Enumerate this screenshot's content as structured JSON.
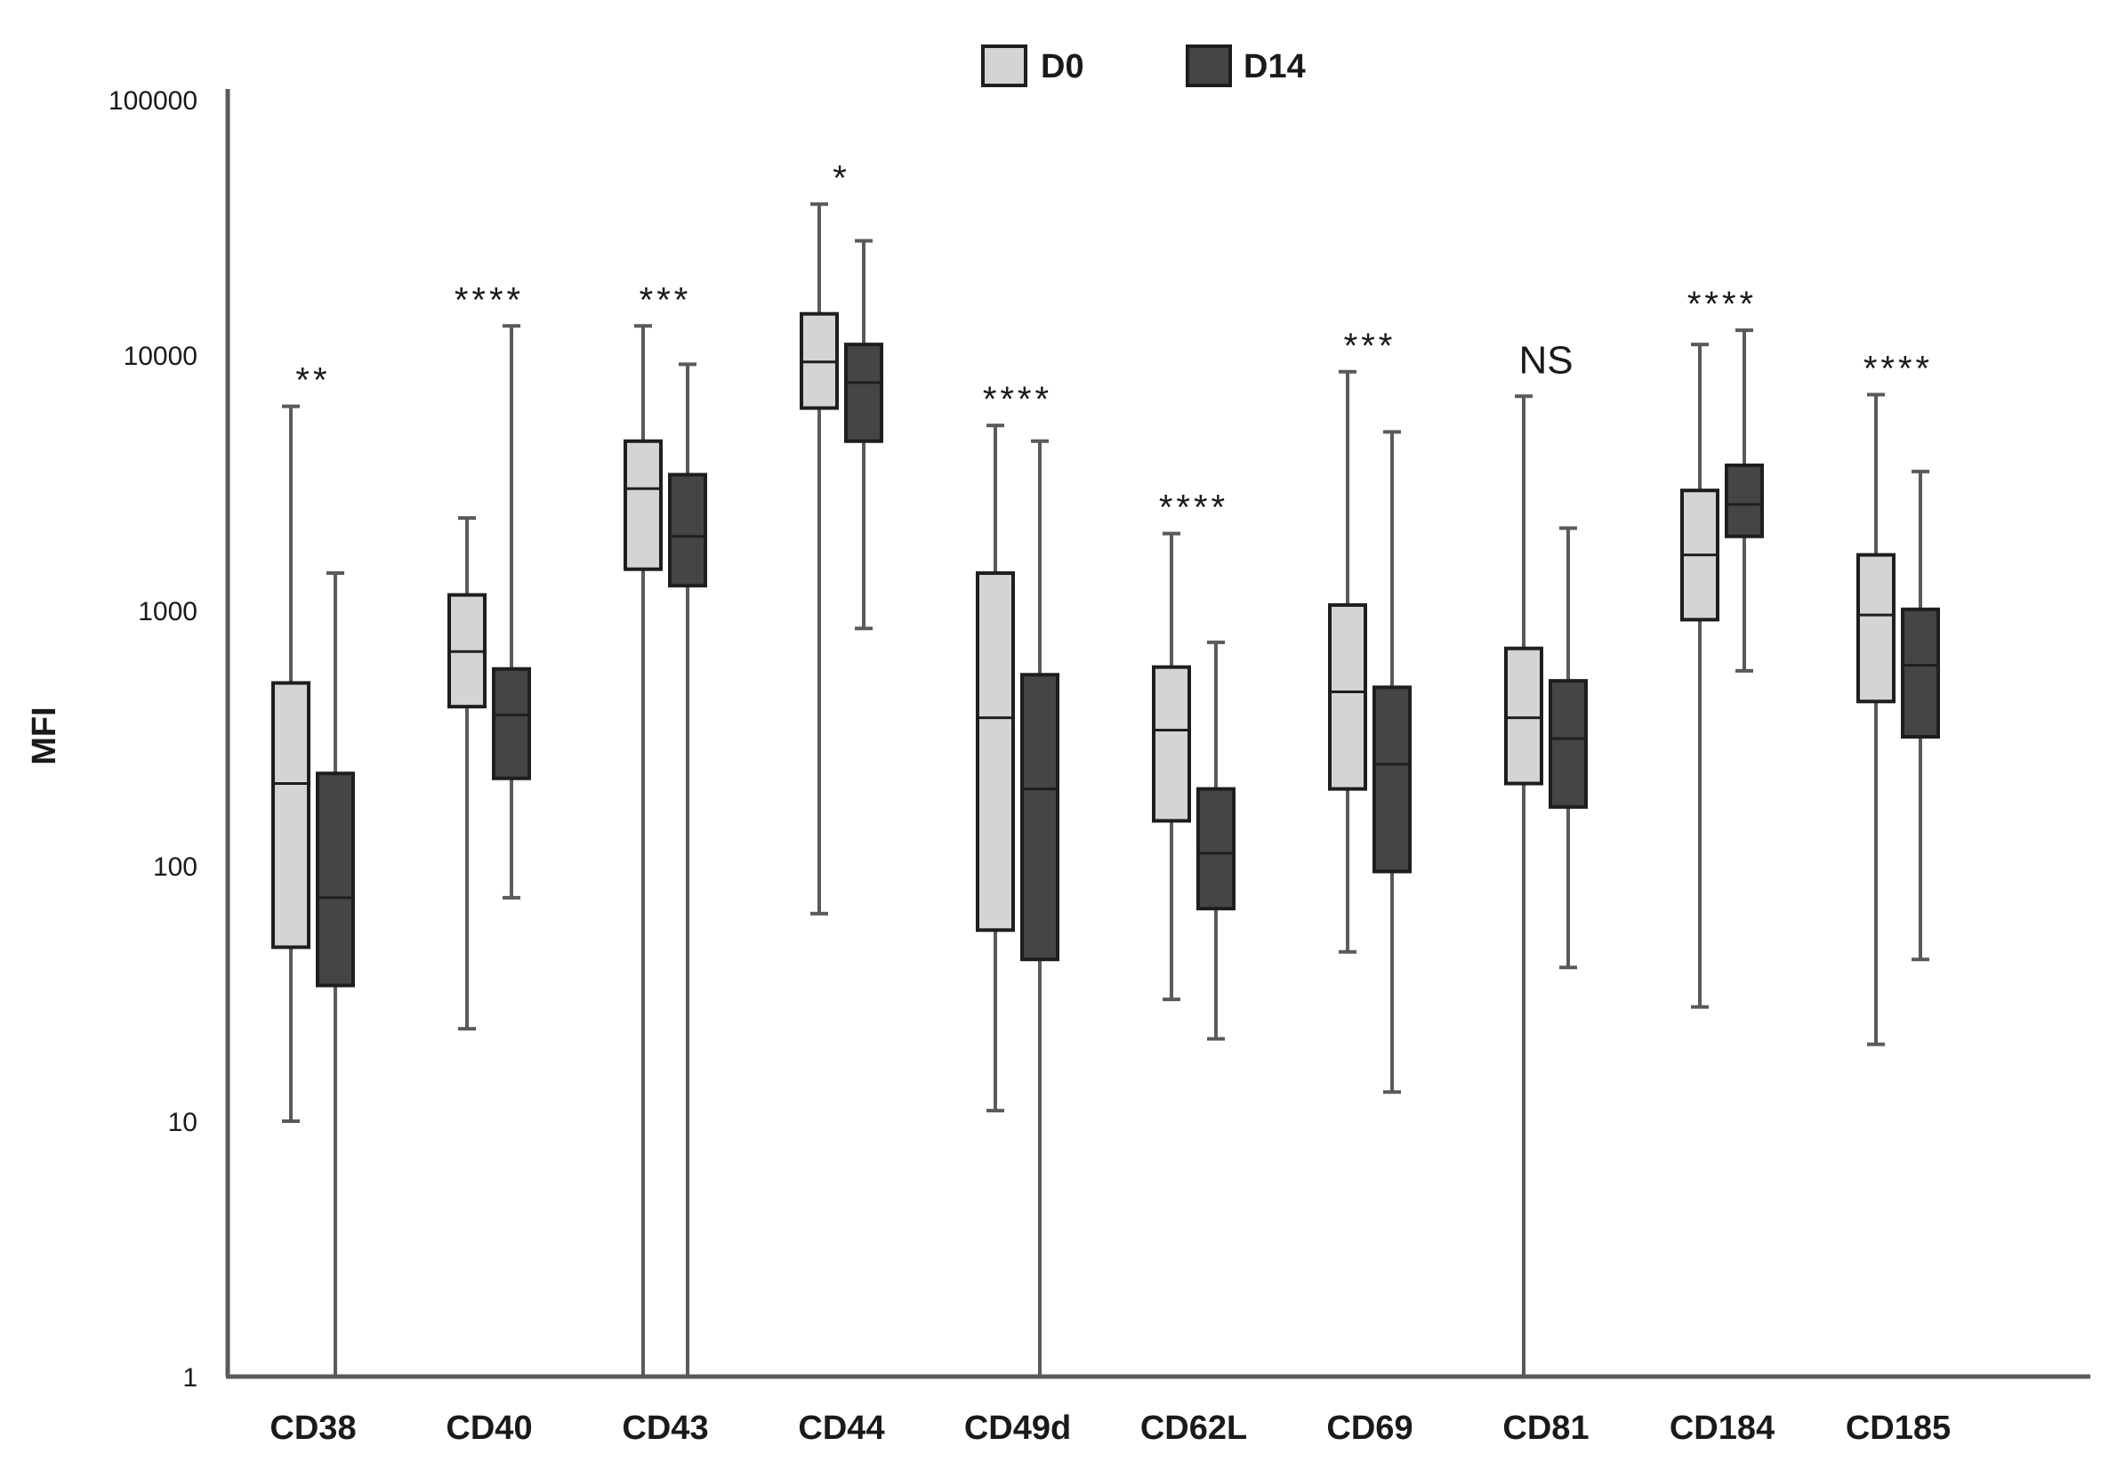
{
  "chart_data": {
    "type": "box",
    "title": "",
    "xlabel": "",
    "ylabel": "MFI",
    "yscale": "log",
    "ylim": [
      1,
      100000
    ],
    "yticks": [
      "1",
      "10",
      "100",
      "1000",
      "10000",
      "100000"
    ],
    "grid": false,
    "legend_position": "top-center",
    "categories": [
      "CD38",
      "CD40",
      "CD43",
      "CD44",
      "CD49d",
      "CD62L",
      "CD69",
      "CD81",
      "CD184",
      "CD185"
    ],
    "significance": [
      "**",
      "****",
      "***",
      "*",
      "****",
      "****",
      "***",
      "NS",
      "****",
      "****"
    ],
    "series": [
      {
        "name": "D0",
        "color": "#d4d4d4",
        "boxes": [
          {
            "min": 10,
            "q1": 48,
            "median": 210,
            "q3": 520,
            "max": 6300
          },
          {
            "min": 23,
            "q1": 420,
            "median": 690,
            "q3": 1150,
            "max": 2300
          },
          {
            "min": 1,
            "q1": 1450,
            "median": 3000,
            "q3": 4600,
            "max": 13000
          },
          {
            "min": 65,
            "q1": 6200,
            "median": 9400,
            "q3": 14500,
            "max": 39000
          },
          {
            "min": 11,
            "q1": 56,
            "median": 380,
            "q3": 1400,
            "max": 5300
          },
          {
            "min": 30,
            "q1": 150,
            "median": 340,
            "q3": 600,
            "max": 2000
          },
          {
            "min": 46,
            "q1": 200,
            "median": 480,
            "q3": 1050,
            "max": 8600
          },
          {
            "min": 1,
            "q1": 210,
            "median": 380,
            "q3": 710,
            "max": 6900
          },
          {
            "min": 28,
            "q1": 920,
            "median": 1650,
            "q3": 2950,
            "max": 11000
          },
          {
            "min": 20,
            "q1": 440,
            "median": 960,
            "q3": 1650,
            "max": 7000
          }
        ]
      },
      {
        "name": "D14",
        "color": "#454545",
        "boxes": [
          {
            "min": 1,
            "q1": 34,
            "median": 75,
            "q3": 230,
            "max": 1400
          },
          {
            "min": 75,
            "q1": 220,
            "median": 390,
            "q3": 590,
            "max": 13000
          },
          {
            "min": 1,
            "q1": 1250,
            "median": 1950,
            "q3": 3400,
            "max": 9200
          },
          {
            "min": 850,
            "q1": 4600,
            "median": 7800,
            "q3": 11000,
            "max": 28000
          },
          {
            "min": 1,
            "q1": 43,
            "median": 200,
            "q3": 560,
            "max": 4600
          },
          {
            "min": 21,
            "q1": 68,
            "median": 112,
            "q3": 200,
            "max": 750
          },
          {
            "min": 13,
            "q1": 95,
            "median": 250,
            "q3": 500,
            "max": 5000
          },
          {
            "min": 40,
            "q1": 170,
            "median": 315,
            "q3": 530,
            "max": 2100
          },
          {
            "min": 580,
            "q1": 1950,
            "median": 2600,
            "q3": 3700,
            "max": 12500
          },
          {
            "min": 43,
            "q1": 320,
            "median": 610,
            "q3": 1010,
            "max": 3500
          }
        ]
      }
    ]
  }
}
